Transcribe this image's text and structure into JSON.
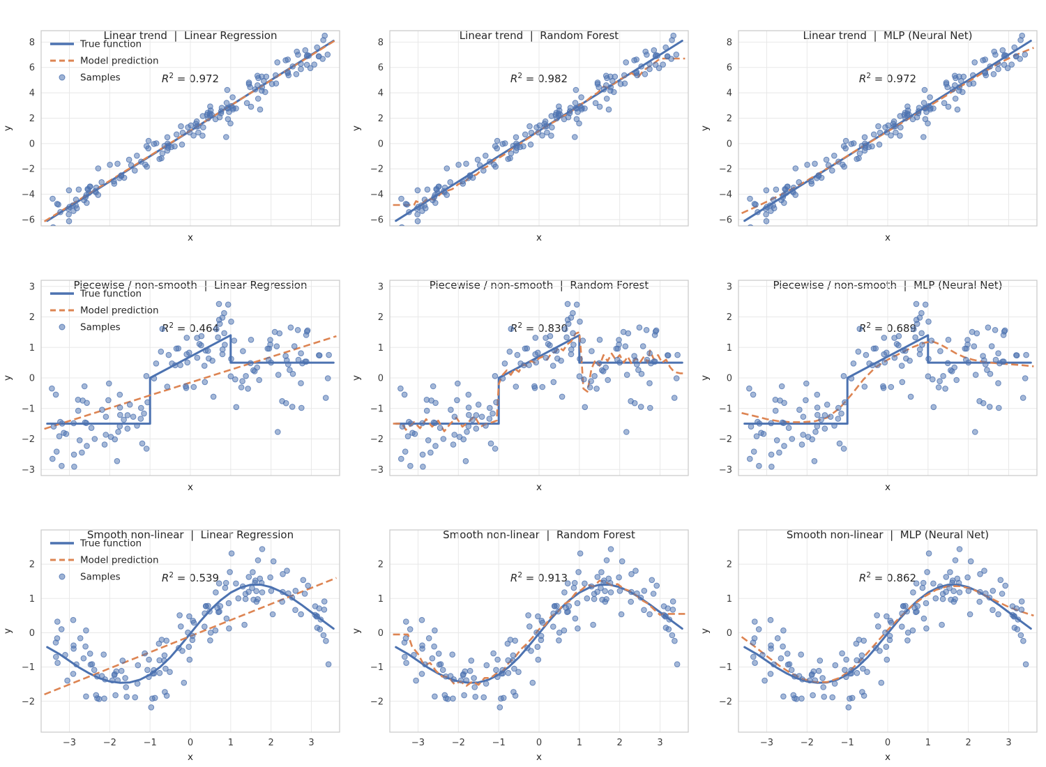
{
  "figure_title": "",
  "colors": {
    "true_line": "#4C72B0",
    "prediction": "#DD8452",
    "samples": "#4C72B0",
    "grid": "#e8e8e8",
    "spine": "#cccccc",
    "title_text": "#262626",
    "tick_text": "#3b3b3b"
  },
  "legend": {
    "true": "True function",
    "prediction": "Model prediction",
    "samples": "Samples"
  },
  "r2_format": {
    "var": "R",
    "sup": "2"
  },
  "axes": {
    "xlabel": "x",
    "ylabel": "y",
    "xlim": [
      -3.7,
      3.7
    ],
    "xticks": [
      -3,
      -2,
      -1,
      0,
      1,
      2,
      3
    ],
    "xtick_labels": [
      "−3",
      "−2",
      "−1",
      "0",
      "1",
      "2",
      "3"
    ]
  },
  "rows": [
    {
      "name": "Linear trend",
      "ylim": [
        -6.5,
        8.9
      ],
      "yticks": [
        8,
        6,
        4,
        2,
        0,
        -2,
        -4,
        -6
      ],
      "ytick_labels": [
        "8",
        "6",
        "4",
        "2",
        "0",
        "−2",
        "−4",
        "−6"
      ],
      "true_fn": [
        [
          -3.55,
          -6.1
        ],
        [
          3.55,
          8.1
        ]
      ],
      "samples": {
        "seed": 11,
        "n": 150,
        "x_min": -3.45,
        "x_max": 3.45,
        "noise_sd": 0.6
      }
    },
    {
      "name": "Piecewise / non-smooth",
      "ylim": [
        -3.2,
        3.2
      ],
      "yticks": [
        3,
        2,
        1,
        0,
        -1,
        -2,
        -3
      ],
      "ytick_labels": [
        "3",
        "2",
        "1",
        "0",
        "−1",
        "−2",
        "−3"
      ],
      "true_fn": [
        [
          -3.55,
          -1.5
        ],
        [
          -1,
          -1.5
        ],
        [
          -1,
          0
        ],
        [
          1,
          1.4
        ],
        [
          1,
          0.5
        ],
        [
          3.55,
          0.5
        ]
      ],
      "samples": {
        "seed": 22,
        "n": 150,
        "x_min": -3.45,
        "x_max": 3.45,
        "noise_sd": 0.68
      }
    },
    {
      "name": "Smooth non-linear",
      "ylim": [
        -2.9,
        3.0
      ],
      "yticks": [
        2,
        1,
        0,
        -1,
        -2
      ],
      "ytick_labels": [
        "2",
        "1",
        "0",
        "−1",
        "−2"
      ],
      "true_fn": [
        [
          -3.55,
          -0.42
        ],
        [
          -3.25,
          -0.62
        ],
        [
          -3,
          -0.82
        ],
        [
          -2.75,
          -1.02
        ],
        [
          -2.5,
          -1.19
        ],
        [
          -2.25,
          -1.33
        ],
        [
          -2,
          -1.42
        ],
        [
          -1.75,
          -1.46
        ],
        [
          -1.5,
          -1.45
        ],
        [
          -1.25,
          -1.37
        ],
        [
          -1,
          -1.22
        ],
        [
          -0.75,
          -1.0
        ],
        [
          -0.5,
          -0.72
        ],
        [
          -0.25,
          -0.38
        ],
        [
          0,
          -0.02
        ],
        [
          0.25,
          0.34
        ],
        [
          0.5,
          0.67
        ],
        [
          0.75,
          0.95
        ],
        [
          1,
          1.17
        ],
        [
          1.25,
          1.32
        ],
        [
          1.5,
          1.4
        ],
        [
          1.75,
          1.4
        ],
        [
          2,
          1.33
        ],
        [
          2.25,
          1.2
        ],
        [
          2.5,
          1.02
        ],
        [
          2.75,
          0.82
        ],
        [
          3,
          0.6
        ],
        [
          3.25,
          0.38
        ],
        [
          3.55,
          0.12
        ]
      ],
      "samples": {
        "seed": 33,
        "n": 150,
        "x_min": -3.45,
        "x_max": 3.45,
        "noise_sd": 0.52
      }
    }
  ],
  "chart_data": [
    {
      "type": "line+scatter",
      "row": 0,
      "dataset": "Linear trend",
      "model": "Linear Regression",
      "title": "Linear trend  |  Linear Regression",
      "r2": 0.972,
      "r2_text": " = 0.972",
      "show_legend": true,
      "show_xtick_labels": false,
      "prediction": [
        [
          -3.62,
          -6.15
        ],
        [
          3.62,
          8.19
        ]
      ]
    },
    {
      "type": "line+scatter",
      "row": 0,
      "dataset": "Linear trend",
      "model": "Random Forest",
      "title": "Linear trend  |  Random Forest",
      "r2": 0.982,
      "r2_text": " = 0.982",
      "show_legend": false,
      "show_xtick_labels": false,
      "prediction": [
        [
          -3.62,
          -4.85
        ],
        [
          -3.1,
          -4.85
        ],
        [
          -3.05,
          -4.55
        ],
        [
          -2.9,
          -4.75
        ],
        [
          -2.75,
          -4.3
        ],
        [
          -2.6,
          -4.45
        ],
        [
          -2.45,
          -4.0
        ],
        [
          -2.3,
          -3.75
        ],
        [
          -2.15,
          -3.6
        ],
        [
          -2.0,
          -3.2
        ],
        [
          -1.85,
          -3.05
        ],
        [
          -1.7,
          -2.6
        ],
        [
          -1.55,
          -2.45
        ],
        [
          -1.4,
          -2.0
        ],
        [
          -1.25,
          -1.75
        ],
        [
          -1.1,
          -1.3
        ],
        [
          -0.95,
          -1.05
        ],
        [
          -0.8,
          -0.75
        ],
        [
          -0.65,
          -0.35
        ],
        [
          -0.5,
          -0.1
        ],
        [
          -0.35,
          0.25
        ],
        [
          -0.2,
          0.55
        ],
        [
          -0.05,
          0.9
        ],
        [
          0.1,
          1.2
        ],
        [
          0.25,
          1.5
        ],
        [
          0.4,
          1.75
        ],
        [
          0.55,
          2.1
        ],
        [
          0.7,
          2.3
        ],
        [
          0.85,
          2.65
        ],
        [
          1.0,
          3.05
        ],
        [
          1.15,
          3.3
        ],
        [
          1.3,
          3.7
        ],
        [
          1.45,
          4.0
        ],
        [
          1.6,
          4.5
        ],
        [
          1.7,
          4.4
        ],
        [
          1.85,
          4.7
        ],
        [
          2.0,
          5.05
        ],
        [
          2.15,
          5.3
        ],
        [
          2.3,
          5.55
        ],
        [
          2.45,
          5.2
        ],
        [
          2.6,
          5.8
        ],
        [
          2.75,
          6.1
        ],
        [
          2.9,
          6.45
        ],
        [
          3.0,
          6.7
        ],
        [
          3.62,
          6.7
        ]
      ]
    },
    {
      "type": "line+scatter",
      "row": 0,
      "dataset": "Linear trend",
      "model": "MLP (Neural Net)",
      "title": "Linear trend  |  MLP (Neural Net)",
      "r2": 0.972,
      "r2_text": " = 0.972",
      "show_legend": false,
      "show_xtick_labels": false,
      "prediction": [
        [
          -3.62,
          -5.5
        ],
        [
          -3.2,
          -4.9
        ],
        [
          -2.8,
          -4.28
        ],
        [
          -2.4,
          -3.62
        ],
        [
          -2,
          -2.92
        ],
        [
          -1.6,
          -2.15
        ],
        [
          -1.2,
          -1.38
        ],
        [
          -0.8,
          -0.58
        ],
        [
          -0.4,
          0.18
        ],
        [
          0,
          0.95
        ],
        [
          0.4,
          1.72
        ],
        [
          0.8,
          2.5
        ],
        [
          1.2,
          3.28
        ],
        [
          1.6,
          4.08
        ],
        [
          2,
          4.88
        ],
        [
          2.4,
          5.66
        ],
        [
          2.8,
          6.4
        ],
        [
          3.2,
          7.02
        ],
        [
          3.62,
          7.55
        ]
      ]
    },
    {
      "type": "line+scatter",
      "row": 1,
      "dataset": "Piecewise / non-smooth",
      "model": "Linear Regression",
      "title": "Piecewise / non-smooth  |  Linear Regression",
      "r2": 0.464,
      "r2_text": " = 0.464",
      "show_legend": true,
      "show_xtick_labels": false,
      "prediction": [
        [
          -3.62,
          -1.67
        ],
        [
          3.62,
          1.37
        ]
      ]
    },
    {
      "type": "line+scatter",
      "row": 1,
      "dataset": "Piecewise / non-smooth",
      "model": "Random Forest",
      "title": "Piecewise / non-smooth  |  Random Forest",
      "r2": 0.83,
      "r2_text": " = 0.830",
      "show_legend": false,
      "show_xtick_labels": false,
      "prediction": [
        [
          -3.62,
          -1.5
        ],
        [
          -3.4,
          -1.5
        ],
        [
          -3.3,
          -1.7
        ],
        [
          -3.1,
          -1.45
        ],
        [
          -2.95,
          -1.65
        ],
        [
          -2.8,
          -1.35
        ],
        [
          -2.65,
          -1.6
        ],
        [
          -2.5,
          -1.4
        ],
        [
          -2.35,
          -1.75
        ],
        [
          -2.2,
          -1.5
        ],
        [
          -2.05,
          -1.3
        ],
        [
          -1.9,
          -1.6
        ],
        [
          -1.75,
          -1.45
        ],
        [
          -1.6,
          -1.25
        ],
        [
          -1.45,
          -1.6
        ],
        [
          -1.3,
          -1.5
        ],
        [
          -1.15,
          -1.45
        ],
        [
          -1.05,
          -1.4
        ],
        [
          -1.0,
          -0.2
        ],
        [
          -0.9,
          0.1
        ],
        [
          -0.8,
          0.25
        ],
        [
          -0.7,
          0.1
        ],
        [
          -0.6,
          0.3
        ],
        [
          -0.5,
          0.2
        ],
        [
          -0.4,
          0.45
        ],
        [
          -0.3,
          0.4
        ],
        [
          -0.2,
          0.55
        ],
        [
          -0.1,
          0.5
        ],
        [
          0,
          0.65
        ],
        [
          0.1,
          0.7
        ],
        [
          0.2,
          0.6
        ],
        [
          0.3,
          0.8
        ],
        [
          0.4,
          0.85
        ],
        [
          0.5,
          1.0
        ],
        [
          0.6,
          0.9
        ],
        [
          0.7,
          1.1
        ],
        [
          0.8,
          1.2
        ],
        [
          0.9,
          1.45
        ],
        [
          1.0,
          1.5
        ],
        [
          1.05,
          0.7
        ],
        [
          1.1,
          -0.35
        ],
        [
          1.2,
          -0.45
        ],
        [
          1.3,
          0.3
        ],
        [
          1.4,
          0.6
        ],
        [
          1.5,
          0.4
        ],
        [
          1.6,
          0.75
        ],
        [
          1.7,
          0.55
        ],
        [
          1.8,
          0.8
        ],
        [
          1.9,
          0.6
        ],
        [
          2.0,
          0.75
        ],
        [
          2.1,
          0.5
        ],
        [
          2.2,
          0.7
        ],
        [
          2.3,
          0.45
        ],
        [
          2.4,
          0.65
        ],
        [
          2.5,
          0.5
        ],
        [
          2.6,
          0.7
        ],
        [
          2.7,
          0.5
        ],
        [
          2.75,
          0.9
        ],
        [
          2.85,
          0.6
        ],
        [
          2.95,
          0.75
        ],
        [
          3.05,
          0.5
        ],
        [
          3.15,
          0.6
        ],
        [
          3.25,
          0.35
        ],
        [
          3.35,
          0.2
        ],
        [
          3.5,
          0.15
        ],
        [
          3.62,
          0.15
        ]
      ]
    },
    {
      "type": "line+scatter",
      "row": 1,
      "dataset": "Piecewise / non-smooth",
      "model": "MLP (Neural Net)",
      "title": "Piecewise / non-smooth  |  MLP (Neural Net)",
      "r2": 0.689,
      "r2_text": " = 0.689",
      "show_legend": false,
      "show_xtick_labels": false,
      "prediction": [
        [
          -3.62,
          -1.15
        ],
        [
          -3.3,
          -1.25
        ],
        [
          -3.0,
          -1.35
        ],
        [
          -2.7,
          -1.42
        ],
        [
          -2.4,
          -1.45
        ],
        [
          -2.1,
          -1.45
        ],
        [
          -1.8,
          -1.42
        ],
        [
          -1.5,
          -1.3
        ],
        [
          -1.2,
          -1.0
        ],
        [
          -0.9,
          -0.55
        ],
        [
          -0.6,
          -0.05
        ],
        [
          -0.3,
          0.35
        ],
        [
          0,
          0.6
        ],
        [
          0.3,
          0.8
        ],
        [
          0.6,
          1.0
        ],
        [
          0.9,
          1.15
        ],
        [
          1.1,
          1.2
        ],
        [
          1.3,
          1.1
        ],
        [
          1.5,
          0.95
        ],
        [
          1.7,
          0.8
        ],
        [
          1.9,
          0.68
        ],
        [
          2.1,
          0.6
        ],
        [
          2.4,
          0.52
        ],
        [
          2.7,
          0.48
        ],
        [
          3.0,
          0.45
        ],
        [
          3.3,
          0.42
        ],
        [
          3.62,
          0.38
        ]
      ]
    },
    {
      "type": "line+scatter",
      "row": 2,
      "dataset": "Smooth non-linear",
      "model": "Linear Regression",
      "title": "Smooth non-linear  |  Linear Regression",
      "r2": 0.539,
      "r2_text": " = 0.539",
      "show_legend": true,
      "show_xtick_labels": true,
      "prediction": [
        [
          -3.62,
          -1.8
        ],
        [
          3.62,
          1.6
        ]
      ]
    },
    {
      "type": "line+scatter",
      "row": 2,
      "dataset": "Smooth non-linear",
      "model": "Random Forest",
      "title": "Smooth non-linear  |  Random Forest",
      "r2": 0.913,
      "r2_text": " = 0.913",
      "show_legend": false,
      "show_xtick_labels": true,
      "prediction": [
        [
          -3.62,
          -0.05
        ],
        [
          -3.25,
          -0.05
        ],
        [
          -3.15,
          -0.4
        ],
        [
          -3.0,
          -0.62
        ],
        [
          -2.85,
          -0.95
        ],
        [
          -2.7,
          -0.88
        ],
        [
          -2.55,
          -1.12
        ],
        [
          -2.4,
          -1.28
        ],
        [
          -2.25,
          -1.28
        ],
        [
          -2.1,
          -1.5
        ],
        [
          -1.95,
          -1.42
        ],
        [
          -1.8,
          -1.55
        ],
        [
          -1.65,
          -1.42
        ],
        [
          -1.5,
          -1.52
        ],
        [
          -1.35,
          -1.32
        ],
        [
          -1.2,
          -1.32
        ],
        [
          -1.05,
          -1.18
        ],
        [
          -0.9,
          -1.12
        ],
        [
          -0.75,
          -0.88
        ],
        [
          -0.6,
          -0.72
        ],
        [
          -0.45,
          -0.48
        ],
        [
          -0.3,
          -0.32
        ],
        [
          -0.15,
          -0.12
        ],
        [
          0,
          0.1
        ],
        [
          0.15,
          0.22
        ],
        [
          0.3,
          0.48
        ],
        [
          0.45,
          0.58
        ],
        [
          0.6,
          0.82
        ],
        [
          0.75,
          0.92
        ],
        [
          0.9,
          1.15
        ],
        [
          1.05,
          1.25
        ],
        [
          1.2,
          1.4
        ],
        [
          1.35,
          1.35
        ],
        [
          1.5,
          1.52
        ],
        [
          1.65,
          1.48
        ],
        [
          1.8,
          1.38
        ],
        [
          1.95,
          1.42
        ],
        [
          2.1,
          1.28
        ],
        [
          2.25,
          1.22
        ],
        [
          2.4,
          1.1
        ],
        [
          2.55,
          0.95
        ],
        [
          2.7,
          0.85
        ],
        [
          2.85,
          0.68
        ],
        [
          3.0,
          0.52
        ],
        [
          3.1,
          0.55
        ],
        [
          3.62,
          0.55
        ]
      ]
    },
    {
      "type": "line+scatter",
      "row": 2,
      "dataset": "Smooth non-linear",
      "model": "MLP (Neural Net)",
      "title": "Smooth non-linear  |  MLP (Neural Net)",
      "r2": 0.862,
      "r2_text": " = 0.862",
      "show_legend": false,
      "show_xtick_labels": true,
      "prediction": [
        [
          -3.62,
          -0.12
        ],
        [
          -3.3,
          -0.4
        ],
        [
          -3,
          -0.68
        ],
        [
          -2.7,
          -0.95
        ],
        [
          -2.4,
          -1.18
        ],
        [
          -2.1,
          -1.35
        ],
        [
          -1.8,
          -1.44
        ],
        [
          -1.5,
          -1.44
        ],
        [
          -1.2,
          -1.32
        ],
        [
          -0.9,
          -1.07
        ],
        [
          -0.6,
          -0.72
        ],
        [
          -0.3,
          -0.32
        ],
        [
          0,
          0.08
        ],
        [
          0.3,
          0.45
        ],
        [
          0.6,
          0.78
        ],
        [
          0.9,
          1.05
        ],
        [
          1.2,
          1.25
        ],
        [
          1.5,
          1.36
        ],
        [
          1.8,
          1.36
        ],
        [
          2.1,
          1.27
        ],
        [
          2.4,
          1.1
        ],
        [
          2.7,
          0.92
        ],
        [
          3,
          0.75
        ],
        [
          3.3,
          0.62
        ],
        [
          3.62,
          0.5
        ]
      ]
    }
  ]
}
